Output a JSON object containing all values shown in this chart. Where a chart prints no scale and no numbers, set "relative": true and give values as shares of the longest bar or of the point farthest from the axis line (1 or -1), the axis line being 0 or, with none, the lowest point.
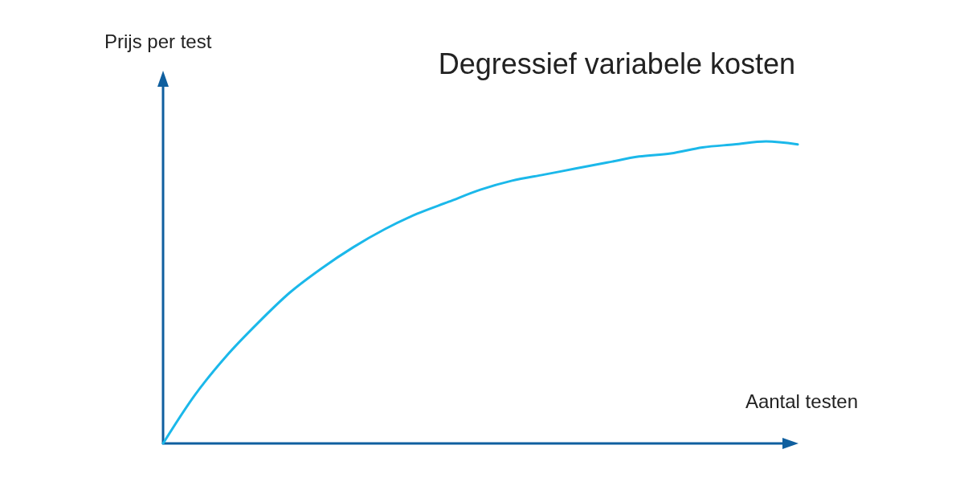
{
  "chart_data": {
    "type": "line",
    "title": "Degressief variabele kosten",
    "xlabel": "Aantal testen",
    "ylabel": "Prijs per test",
    "relative": true,
    "categories": [
      null,
      null,
      null,
      null,
      null,
      null,
      null,
      null,
      null,
      null,
      null,
      null,
      null,
      null,
      null,
      null,
      null,
      null,
      null,
      null,
      null
    ],
    "series": [
      {
        "color": "#1bb8ea",
        "values": [
          0,
          0.16,
          0.29,
          0.4,
          0.5,
          0.58,
          0.65,
          0.71,
          0.76,
          0.8,
          0.84,
          0.87,
          0.89,
          0.91,
          0.93,
          0.95,
          0.96,
          0.98,
          0.99,
          1,
          0.99
        ]
      }
    ]
  }
}
